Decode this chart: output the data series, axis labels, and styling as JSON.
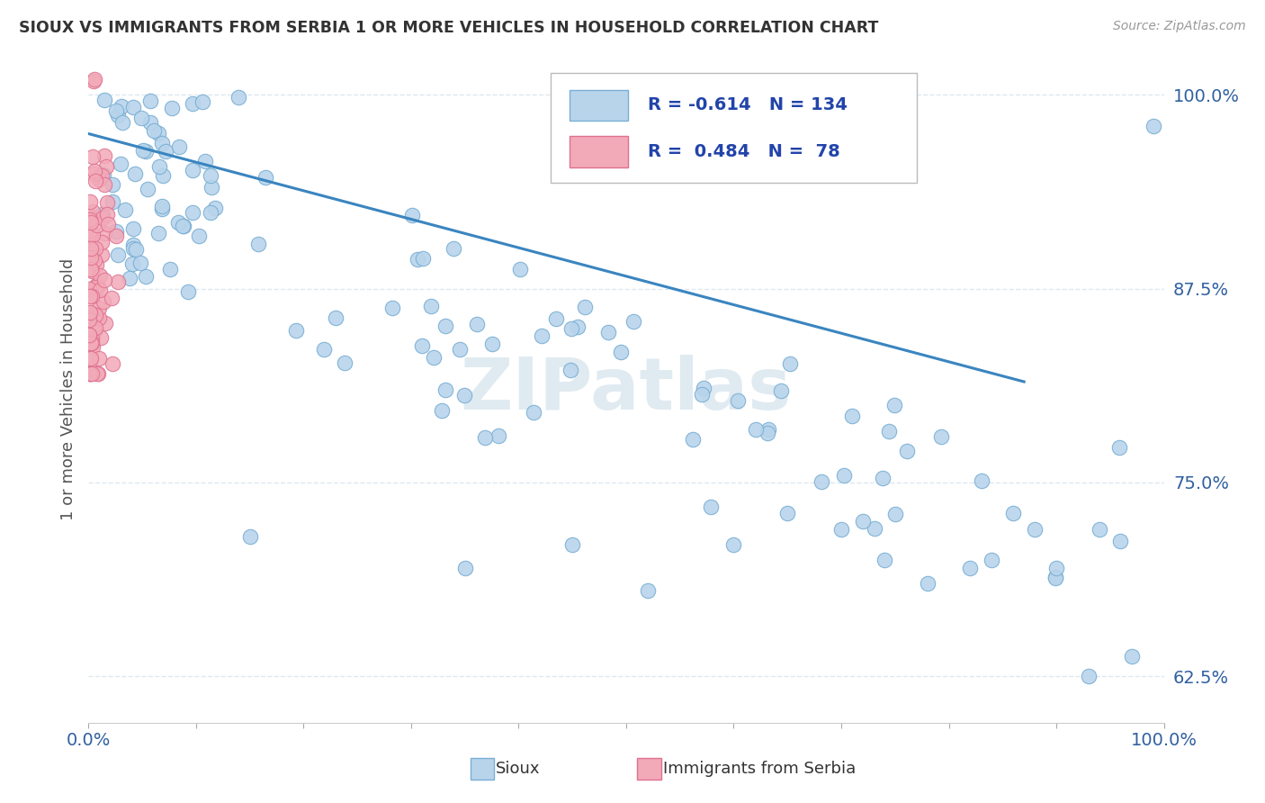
{
  "title": "SIOUX VS IMMIGRANTS FROM SERBIA 1 OR MORE VEHICLES IN HOUSEHOLD CORRELATION CHART",
  "source_text": "Source: ZipAtlas.com",
  "ylabel": "1 or more Vehicles in Household",
  "xlim": [
    0.0,
    1.0
  ],
  "ylim": [
    0.595,
    1.025
  ],
  "yticks": [
    0.625,
    0.75,
    0.875,
    1.0
  ],
  "ytick_labels": [
    "62.5%",
    "75.0%",
    "87.5%",
    "100.0%"
  ],
  "xtick_labels_left": "0.0%",
  "xtick_labels_right": "100.0%",
  "blue_color": "#b8d4eb",
  "blue_edge": "#7aafd4",
  "pink_color": "#f2aab8",
  "pink_edge": "#e07090",
  "trendline_color": "#3a85c0",
  "background_color": "#ffffff",
  "grid_color": "#dde8f0",
  "title_color": "#333333",
  "watermark": "ZIPatlas",
  "watermark_color": "#ccdde8",
  "R_blue": -0.614,
  "N_blue": 134,
  "R_pink": 0.484,
  "N_pink": 78,
  "trendline_x0": 0.0,
  "trendline_y0": 0.975,
  "trendline_x1": 0.87,
  "trendline_y1": 0.815
}
